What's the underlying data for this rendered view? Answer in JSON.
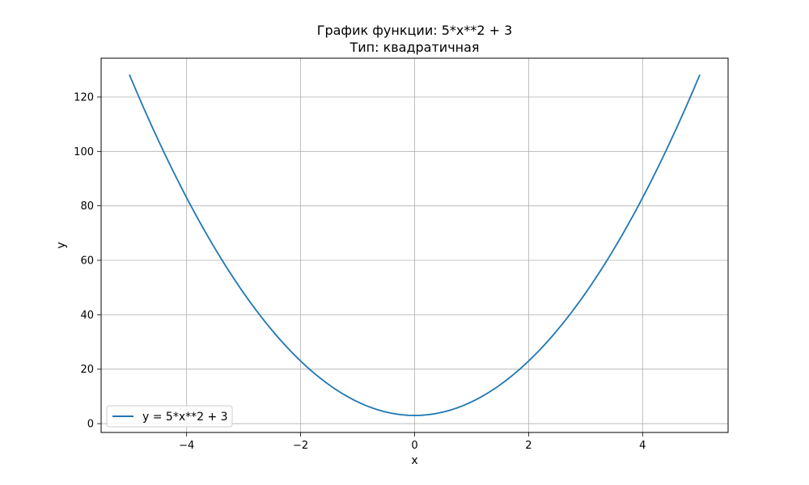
{
  "chart_data": {
    "type": "line",
    "title": "График функции: 5*x**2 + 3",
    "subtitle": "Тип: квадратичная",
    "xlabel": "x",
    "ylabel": "y",
    "xlim": [
      -5.5,
      5.5
    ],
    "ylim": [
      -3.25,
      134.25
    ],
    "grid": true,
    "x_ticks": [
      -4,
      -2,
      0,
      2,
      4
    ],
    "x_tick_labels": [
      "−4",
      "−2",
      "0",
      "2",
      "4"
    ],
    "y_ticks": [
      0,
      20,
      40,
      60,
      80,
      100,
      120
    ],
    "y_tick_labels": [
      "0",
      "20",
      "40",
      "60",
      "80",
      "100",
      "120"
    ],
    "legend_position": "lower-left",
    "series": [
      {
        "name": "y = 5*x**2 + 3",
        "color": "#1f77b4",
        "x": [
          -5,
          -4.5,
          -4,
          -3.5,
          -3,
          -2.5,
          -2,
          -1.5,
          -1,
          -0.5,
          0,
          0.5,
          1,
          1.5,
          2,
          2.5,
          3,
          3.5,
          4,
          4.5,
          5
        ],
        "y": [
          128,
          104.25,
          83,
          64.25,
          48,
          34.25,
          23,
          14.25,
          8,
          4.25,
          3,
          4.25,
          8,
          14.25,
          23,
          34.25,
          48,
          64.25,
          83,
          104.25,
          128
        ]
      }
    ]
  }
}
